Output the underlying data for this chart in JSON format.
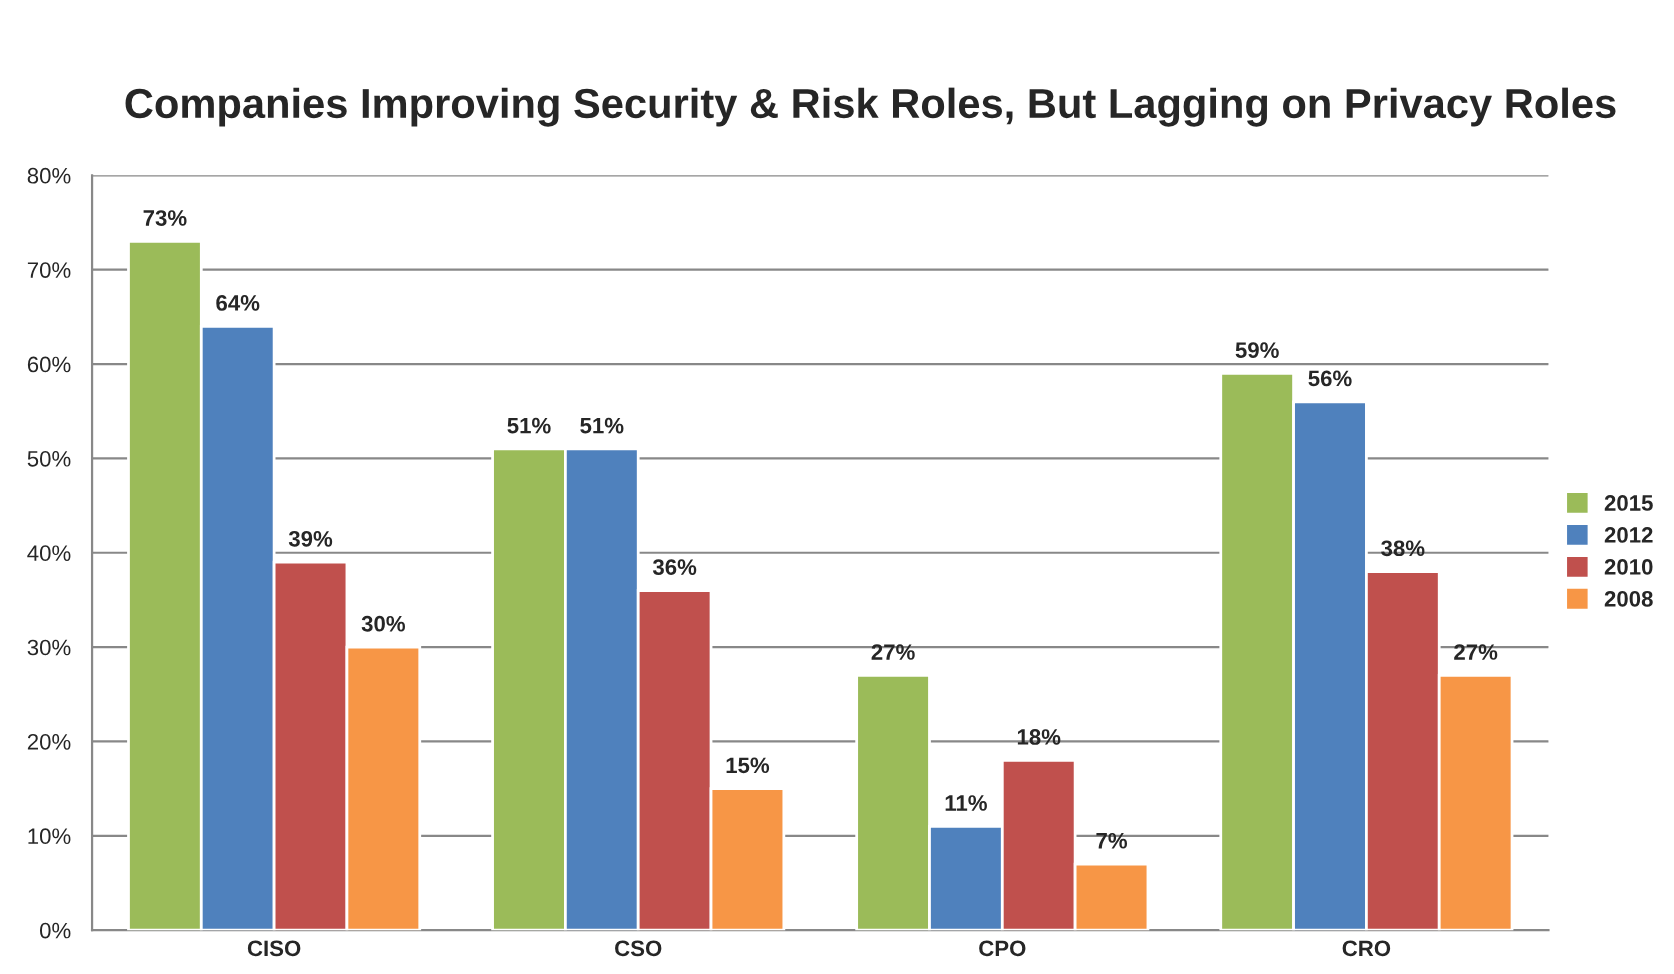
{
  "chart_data": {
    "type": "bar",
    "title": "Companies Improving Security & Risk Roles, But Lagging on Privacy Roles",
    "categories": [
      "CISO",
      "CSO",
      "CPO",
      "CRO"
    ],
    "series": [
      {
        "name": "2015",
        "color": "#9bbb59",
        "values": [
          73,
          51,
          27,
          59
        ],
        "value_labels": [
          "73%",
          "51%",
          "27%",
          "59%"
        ]
      },
      {
        "name": "2012",
        "color": "#4f81bd",
        "values": [
          64,
          51,
          11,
          56
        ],
        "value_labels": [
          "64%",
          "51%",
          "11%",
          "56%"
        ]
      },
      {
        "name": "2010",
        "color": "#c0504d",
        "values": [
          39,
          36,
          18,
          38
        ],
        "value_labels": [
          "39%",
          "36%",
          "18%",
          "38%"
        ]
      },
      {
        "name": "2008",
        "color": "#f79646",
        "values": [
          30,
          15,
          7,
          27
        ],
        "value_labels": [
          "30%",
          "15%",
          "7%",
          "27%"
        ]
      }
    ],
    "ylim": [
      0,
      80
    ],
    "yticks": [
      {
        "value": 0,
        "label": "0%"
      },
      {
        "value": 10,
        "label": "10%"
      },
      {
        "value": 20,
        "label": "20%"
      },
      {
        "value": 30,
        "label": "30%"
      },
      {
        "value": 40,
        "label": "40%"
      },
      {
        "value": 50,
        "label": "50%"
      },
      {
        "value": 60,
        "label": "60%"
      },
      {
        "value": 70,
        "label": "70%"
      },
      {
        "value": 80,
        "label": "80%"
      }
    ],
    "grid": "y",
    "legend": "right"
  }
}
